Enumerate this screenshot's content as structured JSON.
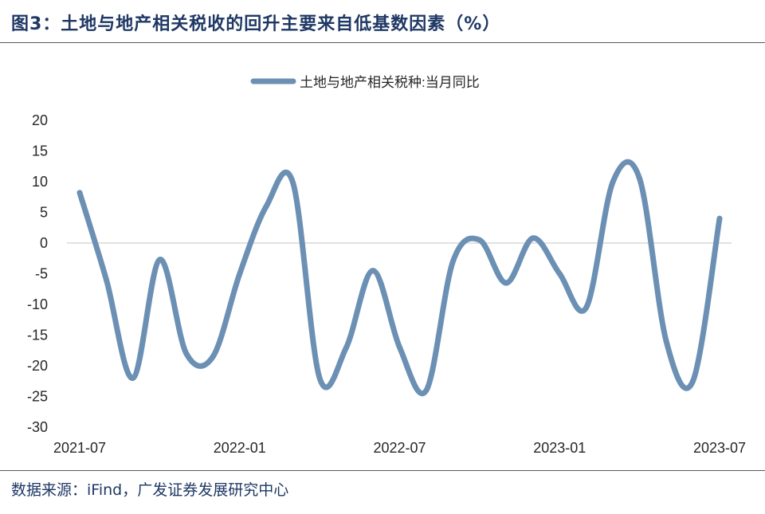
{
  "figure": {
    "title": "图3：土地与地产相关税收的回升主要来自低基数因素（%）",
    "source": "数据来源：iFind，广发证券发展研究中心"
  },
  "colors": {
    "title": "#1f3864",
    "series": "#6c90b4",
    "zero_line": "#d9d9d9",
    "text": "#262626"
  },
  "chart_data": {
    "type": "line",
    "title": "",
    "xlabel": "",
    "ylabel": "",
    "ylim": [
      -30,
      20
    ],
    "yticks": [
      20,
      15,
      10,
      5,
      0,
      -5,
      -10,
      -15,
      -20,
      -25,
      -30
    ],
    "x_tick_labels": [
      "2021-07",
      "2022-01",
      "2022-07",
      "2023-01",
      "2023-07"
    ],
    "grid": false,
    "legend": "top-center",
    "x": [
      "2021-07",
      "2021-08",
      "2021-09",
      "2021-10",
      "2021-11",
      "2021-12",
      "2022-01",
      "2022-02",
      "2022-03",
      "2022-04",
      "2022-05",
      "2022-06",
      "2022-07",
      "2022-08",
      "2022-09",
      "2022-10",
      "2022-11",
      "2022-12",
      "2023-01",
      "2023-02",
      "2023-03",
      "2023-04",
      "2023-05",
      "2023-06",
      "2023-07"
    ],
    "series": [
      {
        "name": "土地与地产相关税种:当月同比",
        "values": [
          8.2,
          -6.0,
          -22.0,
          -2.7,
          -18.0,
          -18.5,
          -5.0,
          6.0,
          9.8,
          -22.0,
          -17.0,
          -4.5,
          -17.0,
          -24.0,
          -3.0,
          0.5,
          -6.5,
          0.8,
          -5.0,
          -10.5,
          10.0,
          10.5,
          -16.0,
          -22.5,
          4.0
        ]
      }
    ]
  }
}
